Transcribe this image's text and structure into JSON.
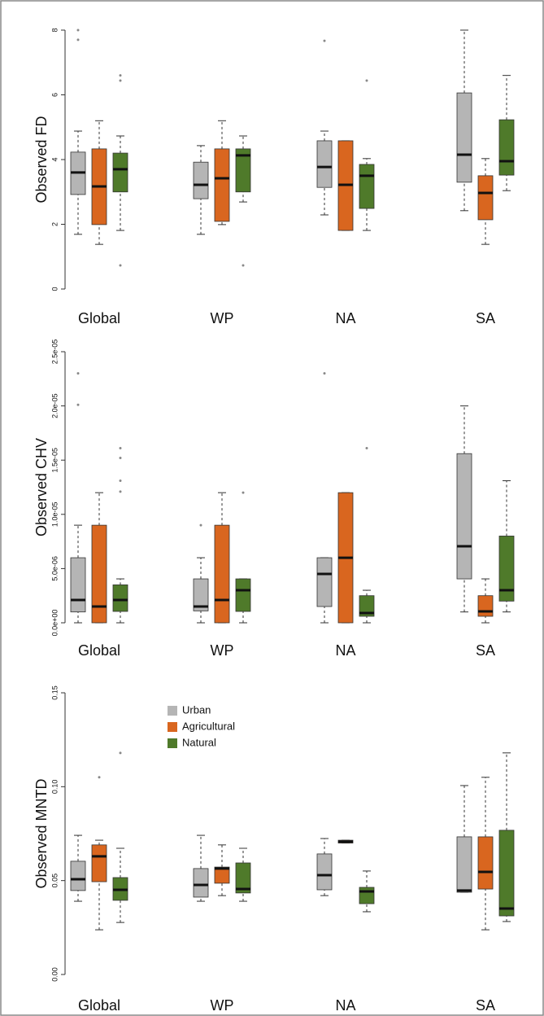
{
  "chart_data": [
    {
      "type": "box",
      "y_label": "Observed FD",
      "categories": [
        "Global",
        "WP",
        "NA",
        "SA"
      ],
      "ylim": [
        0,
        8
      ],
      "yticks": [
        0,
        2,
        4,
        6,
        8
      ],
      "series": [
        {
          "color": "#b5b5b5",
          "values": [
            {
              "whislo": 1.69,
              "q1": 2.92,
              "med": 3.6,
              "q3": 4.23,
              "whishi": 4.88,
              "fliers": [
                8.0,
                7.7
              ]
            },
            {
              "whislo": 1.69,
              "q1": 2.79,
              "med": 3.22,
              "q3": 3.92,
              "whishi": 4.43,
              "fliers": []
            },
            {
              "whislo": 2.29,
              "q1": 3.14,
              "med": 3.77,
              "q3": 4.58,
              "whishi": 4.88,
              "fliers": [
                7.67
              ]
            },
            {
              "whislo": 2.42,
              "q1": 3.3,
              "med": 4.15,
              "q3": 6.06,
              "whishi": 8.0,
              "fliers": []
            }
          ]
        },
        {
          "color": "#d9661f",
          "values": [
            {
              "whislo": 1.38,
              "q1": 1.99,
              "med": 3.17,
              "q3": 4.33,
              "whishi": 5.2,
              "fliers": []
            },
            {
              "whislo": 1.99,
              "q1": 2.09,
              "med": 3.42,
              "q3": 4.33,
              "whishi": 5.2,
              "fliers": []
            },
            {
              "whislo": 1.81,
              "q1": 1.81,
              "med": 3.22,
              "q3": 4.58,
              "whishi": 4.58,
              "fliers": []
            },
            {
              "whislo": 1.38,
              "q1": 2.14,
              "med": 2.97,
              "q3": 3.5,
              "whishi": 4.03,
              "fliers": []
            }
          ]
        },
        {
          "color": "#4f7a2a",
          "values": [
            {
              "whislo": 1.81,
              "q1": 3.0,
              "med": 3.7,
              "q3": 4.2,
              "whishi": 4.73,
              "fliers": [
                6.6,
                6.44,
                0.73
              ]
            },
            {
              "whislo": 2.69,
              "q1": 3.0,
              "med": 4.13,
              "q3": 4.33,
              "whishi": 4.73,
              "fliers": [
                0.73
              ]
            },
            {
              "whislo": 1.81,
              "q1": 2.49,
              "med": 3.5,
              "q3": 3.85,
              "whishi": 4.03,
              "fliers": [
                6.44
              ]
            },
            {
              "whislo": 3.04,
              "q1": 3.52,
              "med": 3.95,
              "q3": 5.23,
              "whishi": 6.6,
              "fliers": []
            }
          ]
        }
      ]
    },
    {
      "type": "box",
      "y_label": "Observed CHV",
      "categories": [
        "Global",
        "WP",
        "NA",
        "SA"
      ],
      "ylim": [
        0,
        2.5e-05
      ],
      "yticks": [
        {
          "value": 0,
          "label": "0.0e+00"
        },
        {
          "value": 5e-06,
          "label": "5.0e-06"
        },
        {
          "value": 1e-05,
          "label": "1.0e-05"
        },
        {
          "value": 1.5e-05,
          "label": "1.5e-05"
        },
        {
          "value": 2e-05,
          "label": "2.0e-05"
        },
        {
          "value": 2.5e-05,
          "label": "2.5e-05"
        }
      ],
      "series": [
        {
          "color": "#b5b5b5",
          "values": [
            {
              "whislo": 0,
              "q1": 1e-06,
              "med": 2.1e-06,
              "q3": 6e-06,
              "whishi": 9e-06,
              "fliers": [
                2.3e-05,
                2.01e-05
              ]
            },
            {
              "whislo": 0,
              "q1": 1.1e-06,
              "med": 1.5e-06,
              "q3": 4.05e-06,
              "whishi": 6e-06,
              "fliers": [
                9e-06
              ]
            },
            {
              "whislo": 0,
              "q1": 1.5e-06,
              "med": 4.5e-06,
              "q3": 6e-06,
              "whishi": 6e-06,
              "fliers": [
                2.3e-05
              ]
            },
            {
              "whislo": 1e-06,
              "q1": 4.05e-06,
              "med": 7.06e-06,
              "q3": 1.56e-05,
              "whishi": 2e-05,
              "fliers": []
            }
          ]
        },
        {
          "color": "#d9661f",
          "values": [
            {
              "whislo": 0,
              "q1": 0,
              "med": 1.5e-06,
              "q3": 9e-06,
              "whishi": 1.2e-05,
              "fliers": []
            },
            {
              "whislo": 0,
              "q1": 0,
              "med": 2.1e-06,
              "q3": 9e-06,
              "whishi": 1.2e-05,
              "fliers": []
            },
            {
              "whislo": 0,
              "q1": 0,
              "med": 6e-06,
              "q3": 1.2e-05,
              "whishi": 1.2e-05,
              "fliers": []
            },
            {
              "whislo": 0,
              "q1": 6e-07,
              "med": 1.05e-06,
              "q3": 2.5e-06,
              "whishi": 4.05e-06,
              "fliers": []
            }
          ]
        },
        {
          "color": "#4f7a2a",
          "values": [
            {
              "whislo": 0,
              "q1": 1.05e-06,
              "med": 2.1e-06,
              "q3": 3.5e-06,
              "whishi": 4.05e-06,
              "fliers": [
                1.61e-05,
                1.52e-05,
                1.31e-05,
                1.21e-05
              ]
            },
            {
              "whislo": 0,
              "q1": 1.05e-06,
              "med": 3e-06,
              "q3": 4.05e-06,
              "whishi": 4.05e-06,
              "fliers": [
                1.2e-05
              ]
            },
            {
              "whislo": 0,
              "q1": 6e-07,
              "med": 9e-07,
              "q3": 2.5e-06,
              "whishi": 3e-06,
              "fliers": [
                1.61e-05
              ]
            },
            {
              "whislo": 1e-06,
              "q1": 2e-06,
              "med": 3e-06,
              "q3": 8e-06,
              "whishi": 1.31e-05,
              "fliers": []
            }
          ]
        }
      ]
    },
    {
      "type": "box",
      "y_label": "Observed MNTD",
      "categories": [
        "Global",
        "WP",
        "NA",
        "SA"
      ],
      "ylim": [
        0,
        0.15
      ],
      "yticks": [
        {
          "value": 0,
          "label": "0.00"
        },
        {
          "value": 0.05,
          "label": "0.05"
        },
        {
          "value": 0.1,
          "label": "0.10"
        },
        {
          "value": 0.15,
          "label": "0.15"
        }
      ],
      "legend": "upper center",
      "series": [
        {
          "name": "Urban",
          "color": "#b5b5b5",
          "values": [
            {
              "whislo": 0.039,
              "q1": 0.0447,
              "med": 0.0507,
              "q3": 0.0603,
              "whishi": 0.0741,
              "fliers": []
            },
            {
              "whislo": 0.039,
              "q1": 0.0412,
              "med": 0.0477,
              "q3": 0.0564,
              "whishi": 0.0741,
              "fliers": []
            },
            {
              "whislo": 0.042,
              "q1": 0.0451,
              "med": 0.0529,
              "q3": 0.0642,
              "whishi": 0.0724,
              "fliers": []
            },
            {
              "whislo": 0.0438,
              "q1": 0.0438,
              "med": 0.0447,
              "q3": 0.0733,
              "whishi": 0.1006,
              "fliers": []
            }
          ]
        },
        {
          "name": "Agricultural",
          "color": "#d9661f",
          "values": [
            {
              "whislo": 0.0238,
              "q1": 0.0494,
              "med": 0.0629,
              "q3": 0.069,
              "whishi": 0.0715,
              "fliers": [
                0.105
              ]
            },
            {
              "whislo": 0.042,
              "q1": 0.0486,
              "med": 0.0564,
              "q3": 0.0572,
              "whishi": 0.069,
              "fliers": []
            },
            {
              "whislo": 0.07,
              "q1": 0.07,
              "med": 0.0707,
              "q3": 0.0715,
              "whishi": 0.0715,
              "fliers": []
            },
            {
              "whislo": 0.0238,
              "q1": 0.0455,
              "med": 0.0546,
              "q3": 0.0733,
              "whishi": 0.105,
              "fliers": []
            }
          ]
        },
        {
          "name": "Natural",
          "color": "#4f7a2a",
          "values": [
            {
              "whislo": 0.0277,
              "q1": 0.0395,
              "med": 0.0451,
              "q3": 0.0516,
              "whishi": 0.0672,
              "fliers": [
                0.118
              ]
            },
            {
              "whislo": 0.039,
              "q1": 0.0434,
              "med": 0.0455,
              "q3": 0.0594,
              "whishi": 0.0672,
              "fliers": []
            },
            {
              "whislo": 0.0334,
              "q1": 0.0377,
              "med": 0.0442,
              "q3": 0.0464,
              "whishi": 0.0551,
              "fliers": []
            },
            {
              "whislo": 0.0282,
              "q1": 0.0312,
              "med": 0.0351,
              "q3": 0.0768,
              "whishi": 0.118,
              "fliers": []
            }
          ]
        }
      ]
    }
  ]
}
